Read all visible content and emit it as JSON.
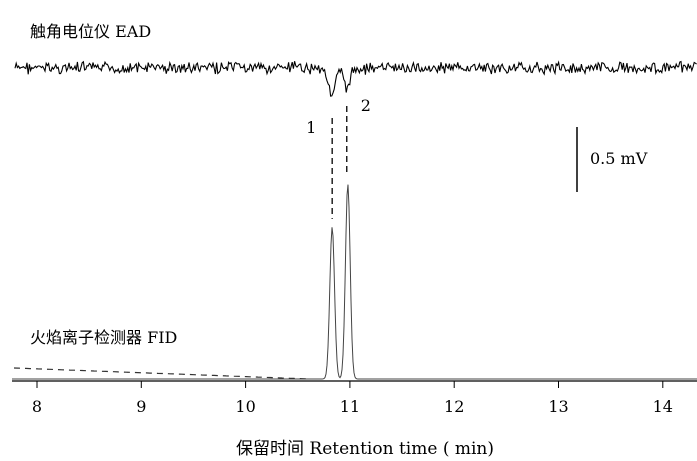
{
  "chart_data": {
    "type": "line",
    "title": "",
    "xlabel": "保留时间 Retention time ( min)",
    "ylabel": "",
    "xlim": [
      7.8,
      14.3
    ],
    "x_ticks": [
      "8",
      "9",
      "10",
      "11",
      "12",
      "13",
      "14"
    ],
    "grid": false,
    "series": [
      {
        "name": "触角电位仪 EAD",
        "trace": "noisy baseline with two negative deflections",
        "responses": [
          {
            "label": "1",
            "x": 10.83,
            "deflection_mV": -0.22
          },
          {
            "label": "2",
            "x": 10.97,
            "deflection_mV": -0.15
          }
        ]
      },
      {
        "name": "火焰离子检测器 FID",
        "trace": "flat baseline with two chromatographic peaks",
        "peaks": [
          {
            "label": "1",
            "x": 10.83,
            "relative_height": 0.78
          },
          {
            "label": "2",
            "x": 10.98,
            "relative_height": 1.0
          }
        ]
      }
    ],
    "scale_bar": {
      "label": "0.5 mV"
    },
    "annotations": [
      "1",
      "2"
    ]
  },
  "colors": {
    "ink": "#000000",
    "fid_trace": "#444444",
    "baseline_dash": "#333333"
  }
}
